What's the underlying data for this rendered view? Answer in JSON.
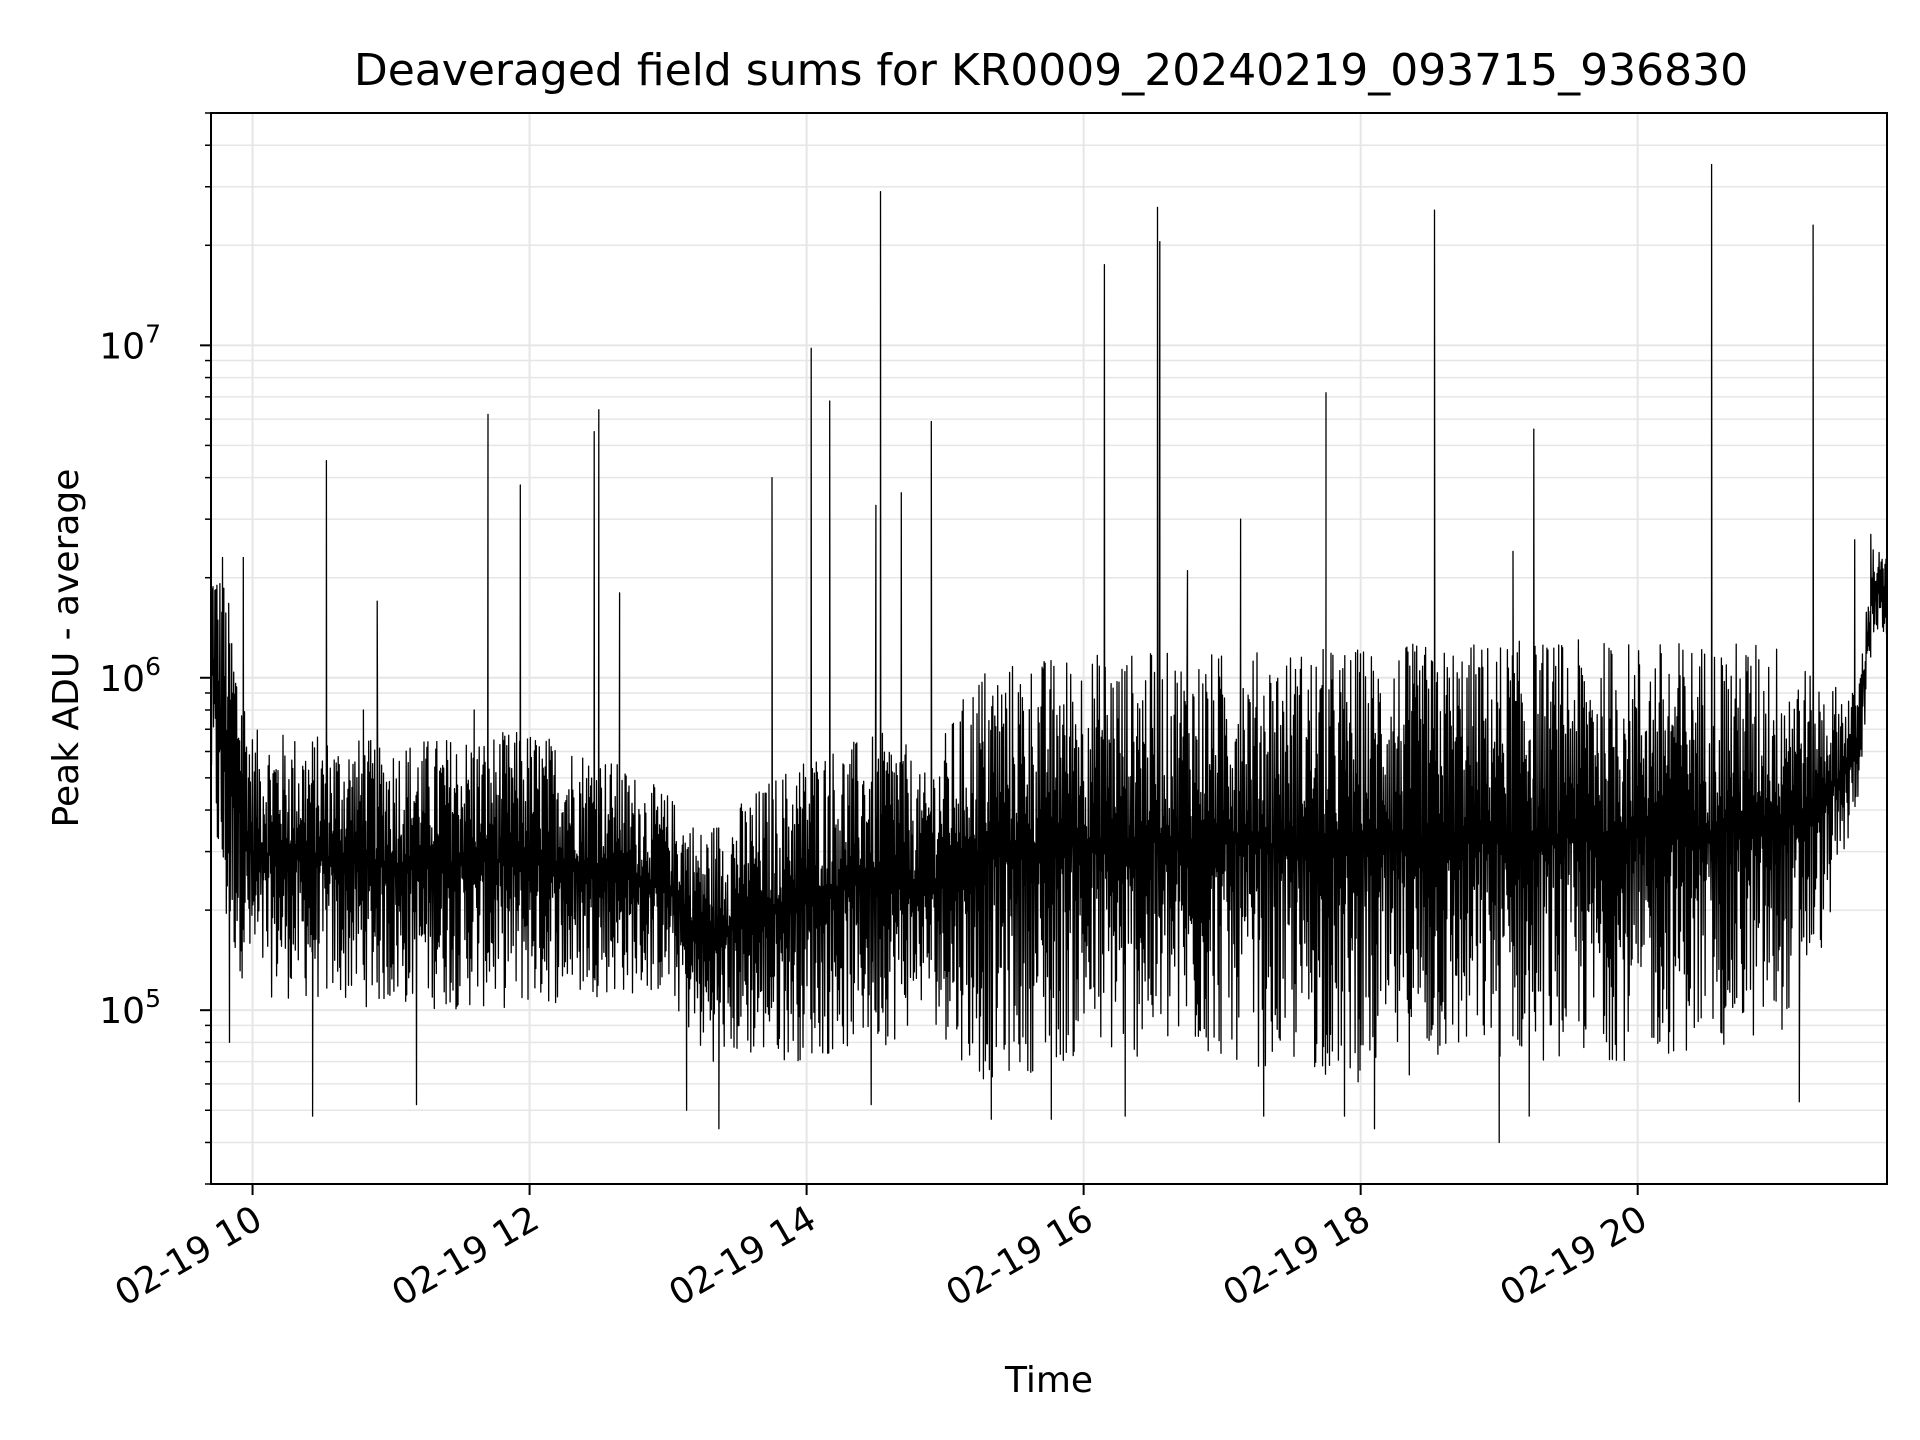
{
  "chart_data": {
    "type": "line",
    "title": "Deaveraged field sums for KR0009_20240219_093715_936830",
    "xlabel": "Time",
    "ylabel": "Peak ADU - average",
    "yscale": "log",
    "xlim": [
      "2024-02-19T09:42",
      "2024-02-19T21:48"
    ],
    "ylim": [
      30000,
      50000000
    ],
    "grid": true,
    "line_color": "#000000",
    "x_ticks": [
      {
        "value": "2024-02-19T10:00",
        "label": "02-19 10"
      },
      {
        "value": "2024-02-19T12:00",
        "label": "02-19 12"
      },
      {
        "value": "2024-02-19T14:00",
        "label": "02-19 14"
      },
      {
        "value": "2024-02-19T16:00",
        "label": "02-19 16"
      },
      {
        "value": "2024-02-19T18:00",
        "label": "02-19 18"
      },
      {
        "value": "2024-02-19T20:00",
        "label": "02-19 20"
      }
    ],
    "y_ticks": [
      {
        "value": 100000,
        "base": "10",
        "exp": "5"
      },
      {
        "value": 1000000,
        "base": "10",
        "exp": "6"
      },
      {
        "value": 10000000,
        "base": "10",
        "exp": "7"
      }
    ],
    "series": [
      {
        "envelope": [
          {
            "x": "2024-02-19T09:42",
            "low": 400000,
            "high": 2600000
          },
          {
            "x": "2024-02-19T09:48",
            "low": 150000,
            "high": 2000000
          },
          {
            "x": "2024-02-19T10:00",
            "low": 110000,
            "high": 700000
          },
          {
            "x": "2024-02-19T11:00",
            "low": 100000,
            "high": 650000
          },
          {
            "x": "2024-02-19T12:00",
            "low": 100000,
            "high": 700000
          },
          {
            "x": "2024-02-19T12:30",
            "low": 110000,
            "high": 600000
          },
          {
            "x": "2024-02-19T13:00",
            "low": 110000,
            "high": 450000
          },
          {
            "x": "2024-02-19T13:15",
            "low": 70000,
            "high": 350000
          },
          {
            "x": "2024-02-19T14:00",
            "low": 70000,
            "high": 600000
          },
          {
            "x": "2024-02-19T14:40",
            "low": 80000,
            "high": 700000
          },
          {
            "x": "2024-02-19T14:50",
            "low": 100000,
            "high": 500000
          },
          {
            "x": "2024-02-19T15:15",
            "low": 60000,
            "high": 1100000
          },
          {
            "x": "2024-02-19T16:00",
            "low": 70000,
            "high": 1200000
          },
          {
            "x": "2024-02-19T17:00",
            "low": 70000,
            "high": 1200000
          },
          {
            "x": "2024-02-19T18:00",
            "low": 60000,
            "high": 1250000
          },
          {
            "x": "2024-02-19T19:00",
            "low": 70000,
            "high": 1300000
          },
          {
            "x": "2024-02-19T20:00",
            "low": 70000,
            "high": 1300000
          },
          {
            "x": "2024-02-19T21:00",
            "low": 80000,
            "high": 1300000
          },
          {
            "x": "2024-02-19T21:20",
            "low": 150000,
            "high": 1000000
          },
          {
            "x": "2024-02-19T21:35",
            "low": 400000,
            "high": 900000
          },
          {
            "x": "2024-02-19T21:42",
            "low": 1300000,
            "high": 2500000
          },
          {
            "x": "2024-02-19T21:48",
            "low": 1300000,
            "high": 2300000
          }
        ],
        "spikes": [
          {
            "x": "2024-02-19T09:47",
            "y": 2300000
          },
          {
            "x": "2024-02-19T09:56",
            "y": 2300000
          },
          {
            "x": "2024-02-19T10:32",
            "y": 4500000
          },
          {
            "x": "2024-02-19T10:48",
            "y": 800000
          },
          {
            "x": "2024-02-19T10:54",
            "y": 1700000
          },
          {
            "x": "2024-02-19T11:36",
            "y": 800000
          },
          {
            "x": "2024-02-19T11:42",
            "y": 6200000
          },
          {
            "x": "2024-02-19T11:56",
            "y": 3800000
          },
          {
            "x": "2024-02-19T12:28",
            "y": 5500000
          },
          {
            "x": "2024-02-19T12:30",
            "y": 6400000
          },
          {
            "x": "2024-02-19T12:39",
            "y": 1800000
          },
          {
            "x": "2024-02-19T13:45",
            "y": 4000000
          },
          {
            "x": "2024-02-19T14:02",
            "y": 9800000
          },
          {
            "x": "2024-02-19T14:10",
            "y": 6800000
          },
          {
            "x": "2024-02-19T14:30",
            "y": 3300000
          },
          {
            "x": "2024-02-19T14:32",
            "y": 29000000
          },
          {
            "x": "2024-02-19T14:41",
            "y": 3600000
          },
          {
            "x": "2024-02-19T14:54",
            "y": 5900000
          },
          {
            "x": "2024-02-19T16:09",
            "y": 17500000
          },
          {
            "x": "2024-02-19T16:32",
            "y": 26000000
          },
          {
            "x": "2024-02-19T16:33",
            "y": 20500000
          },
          {
            "x": "2024-02-19T16:45",
            "y": 2100000
          },
          {
            "x": "2024-02-19T17:08",
            "y": 3000000
          },
          {
            "x": "2024-02-19T17:45",
            "y": 7200000
          },
          {
            "x": "2024-02-19T17:45",
            "y": 2300000
          },
          {
            "x": "2024-02-19T18:32",
            "y": 25500000
          },
          {
            "x": "2024-02-19T19:06",
            "y": 2400000
          },
          {
            "x": "2024-02-19T19:15",
            "y": 5600000
          },
          {
            "x": "2024-02-19T20:32",
            "y": 35000000
          },
          {
            "x": "2024-02-19T21:16",
            "y": 23000000
          },
          {
            "x": "2024-02-19T21:34",
            "y": 2600000
          },
          {
            "x": "2024-02-19T21:41",
            "y": 2700000
          }
        ],
        "dips": [
          {
            "x": "2024-02-19T09:50",
            "y": 80000
          },
          {
            "x": "2024-02-19T10:26",
            "y": 48000
          },
          {
            "x": "2024-02-19T11:11",
            "y": 52000
          },
          {
            "x": "2024-02-19T13:08",
            "y": 50000
          },
          {
            "x": "2024-02-19T13:22",
            "y": 44000
          },
          {
            "x": "2024-02-19T14:28",
            "y": 52000
          },
          {
            "x": "2024-02-19T15:20",
            "y": 47000
          },
          {
            "x": "2024-02-19T15:46",
            "y": 47000
          },
          {
            "x": "2024-02-19T16:18",
            "y": 48000
          },
          {
            "x": "2024-02-19T17:18",
            "y": 48000
          },
          {
            "x": "2024-02-19T17:53",
            "y": 48000
          },
          {
            "x": "2024-02-19T18:06",
            "y": 44000
          },
          {
            "x": "2024-02-19T19:00",
            "y": 40000
          },
          {
            "x": "2024-02-19T19:13",
            "y": 48000
          },
          {
            "x": "2024-02-19T21:10",
            "y": 53000
          }
        ]
      }
    ]
  }
}
